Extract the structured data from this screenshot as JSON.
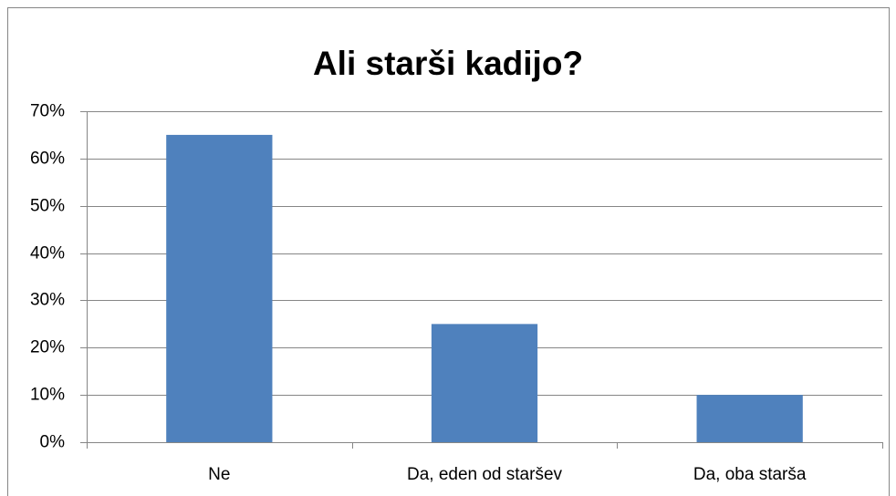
{
  "chart_data": {
    "type": "bar",
    "title": "Ali starši kadijo?",
    "categories": [
      "Ne",
      "Da, eden od staršev",
      "Da, oba starša"
    ],
    "values": [
      65,
      25,
      10
    ],
    "color": "#4f81bd",
    "ylim": [
      0,
      70
    ],
    "yticks": [
      {
        "value": 0,
        "label": "0%"
      },
      {
        "value": 10,
        "label": "10%"
      },
      {
        "value": 20,
        "label": "20%"
      },
      {
        "value": 30,
        "label": "30%"
      },
      {
        "value": 40,
        "label": "40%"
      },
      {
        "value": 50,
        "label": "50%"
      },
      {
        "value": 60,
        "label": "60%"
      },
      {
        "value": 70,
        "label": "70%"
      }
    ],
    "grid": true
  }
}
